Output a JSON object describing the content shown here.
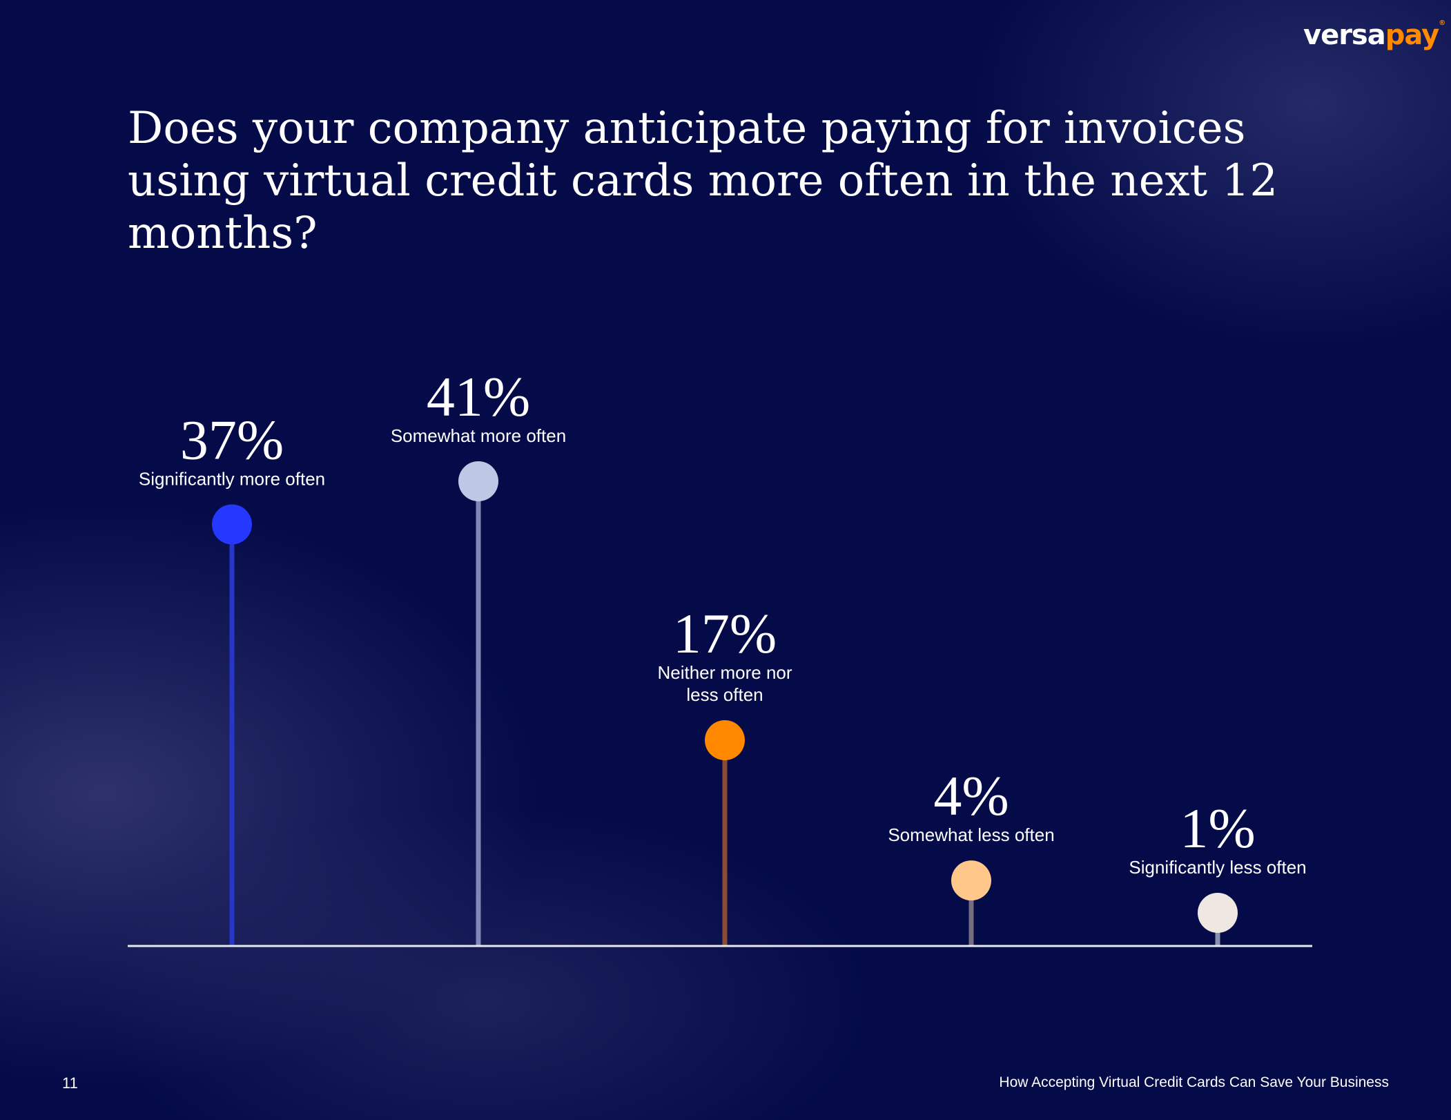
{
  "logo": {
    "part1": "versa",
    "part2": "pay",
    "mark": "®"
  },
  "title": "Does your company anticipate paying for invoices using virtual credit cards more often in the next 12 months?",
  "chart_data": {
    "type": "lollipop",
    "title": "Does your company anticipate paying for invoices using virtual credit cards more often in the next 12 months?",
    "categories": [
      "Significantly more often",
      "Somewhat more often",
      "Neither more nor less often",
      "Somewhat less often",
      "Significantly less often"
    ],
    "label_lines": [
      [
        "Significantly more often"
      ],
      [
        "Somewhat more often"
      ],
      [
        "Neither more nor",
        "less often"
      ],
      [
        "Somewhat less often"
      ],
      [
        "Significantly less often"
      ]
    ],
    "values": [
      37,
      41,
      17,
      4,
      1
    ],
    "value_labels": [
      "37%",
      "41%",
      "17%",
      "4%",
      "1%"
    ],
    "dot_colors": [
      "#2438ff",
      "#bcc8e4",
      "#ff8800",
      "#ffc88a",
      "#efe8e2"
    ],
    "stem_colors": [
      "#2536c8",
      "#7f88b8",
      "#8a4c32",
      "#756d80",
      "#8890b0"
    ],
    "unit": "%",
    "ylim": [
      0,
      41
    ],
    "grid": false
  },
  "footer": {
    "page": "11",
    "doc_title": "How Accepting Virtual Credit Cards Can Save Your Business"
  }
}
